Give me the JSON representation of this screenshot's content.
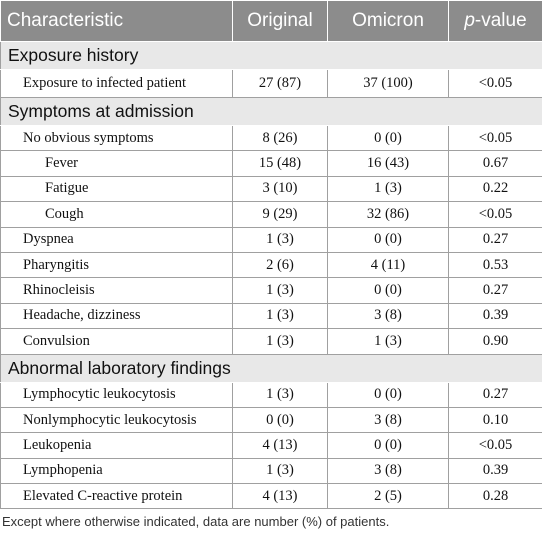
{
  "table": {
    "header": {
      "characteristic": "Characteristic",
      "original": "Original",
      "omicron": "Omicron",
      "p_italic": "p",
      "p_rest": "-value"
    },
    "sections": [
      {
        "title": "Exposure history",
        "rows": [
          [
            "Exposure to infected patient",
            "27 (87)",
            "37 (100)",
            "<0.05"
          ]
        ]
      },
      {
        "title": "Symptoms at admission",
        "rows": [
          [
            "No obvious symptoms",
            "8 (26)",
            "0 (0)",
            "<0.05"
          ],
          [
            "Fever",
            "15 (48)",
            "16 (43)",
            "0.67"
          ],
          [
            "Fatigue",
            "3 (10)",
            "1 (3)",
            "0.22"
          ],
          [
            "Cough",
            "9 (29)",
            "32 (86)",
            "<0.05"
          ],
          [
            "Dyspnea",
            "1 (3)",
            "0 (0)",
            "0.27"
          ],
          [
            "Pharyngitis",
            "2 (6)",
            "4 (11)",
            "0.53"
          ],
          [
            "Rhinocleisis",
            "1 (3)",
            "0 (0)",
            "0.27"
          ],
          [
            "Headache, dizziness",
            "1 (3)",
            "3 (8)",
            "0.39"
          ],
          [
            "Convulsion",
            "1 (3)",
            "1 (3)",
            "0.90"
          ]
        ]
      },
      {
        "title": "Abnormal laboratory findings",
        "rows": [
          [
            "Lymphocytic leukocytosis",
            "1 (3)",
            "0 (0)",
            "0.27"
          ],
          [
            "Nonlymphocytic leukocytosis",
            "0 (0)",
            "3 (8)",
            "0.10"
          ],
          [
            "Leukopenia",
            "4 (13)",
            "0 (0)",
            "<0.05"
          ],
          [
            "Lymphopenia",
            "1 (3)",
            "3 (8)",
            "0.39"
          ],
          [
            "Elevated C-reactive protein",
            "4 (13)",
            "2 (5)",
            "0.28"
          ]
        ]
      }
    ],
    "footnote": "Except where otherwise indicated, data are number (%) of patients."
  }
}
